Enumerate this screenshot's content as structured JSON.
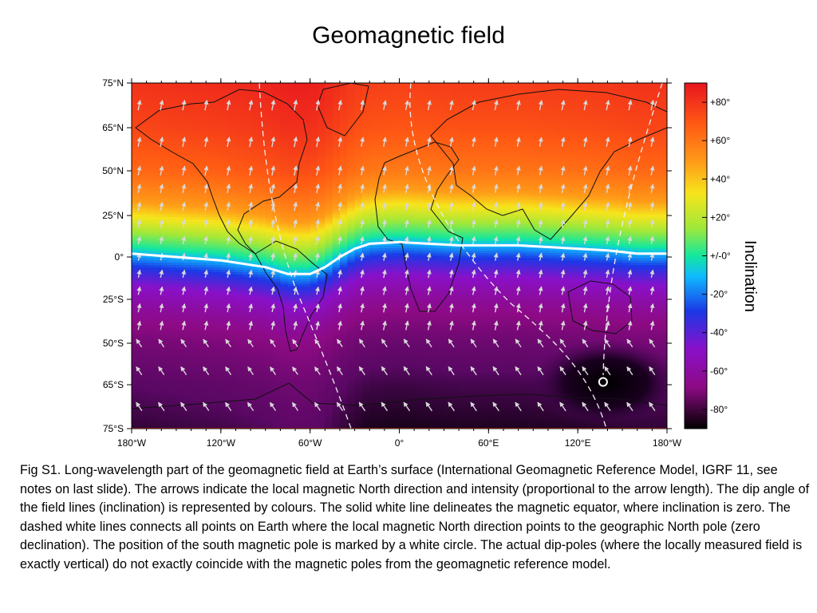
{
  "title": "Geomagnetic field",
  "chart_data": {
    "type": "heatmap",
    "variable": "Inclination",
    "x_ticks": [
      "180°W",
      "120°W",
      "60°W",
      "0°",
      "60°E",
      "120°E",
      "180°W"
    ],
    "x_tick_values": [
      -180,
      -120,
      -60,
      0,
      60,
      120,
      180
    ],
    "y_ticks": [
      "75°N",
      "65°N",
      "50°N",
      "25°N",
      "0°",
      "25°S",
      "50°S",
      "65°S",
      "75°S"
    ],
    "y_tick_values": [
      75,
      65,
      50,
      25,
      0,
      -25,
      -50,
      -65,
      -75
    ],
    "xlim": [
      -180,
      180
    ],
    "ylim": [
      -75,
      75
    ],
    "colorbar": {
      "label": "Inclination",
      "ticks": [
        "+80°",
        "+60°",
        "+40°",
        "+20°",
        "+/-0°",
        "-20°",
        "-40°",
        "-60°",
        "-80°"
      ],
      "tick_values": [
        80,
        60,
        40,
        20,
        0,
        -20,
        -40,
        -60,
        -80
      ],
      "range": [
        -90,
        90
      ]
    },
    "magnetic_equator": {
      "lon": [
        -180,
        -150,
        -120,
        -90,
        -75,
        -60,
        -50,
        -40,
        -30,
        -20,
        0,
        20,
        40,
        60,
        80,
        100,
        120,
        140,
        160,
        180
      ],
      "lat": [
        2,
        0,
        -2,
        -6,
        -10,
        -10,
        -6,
        0,
        5,
        8,
        9,
        8,
        7,
        7,
        7,
        6,
        5,
        4,
        2,
        2
      ]
    },
    "south_magnetic_pole": {
      "lon": 137,
      "lat": -64
    }
  },
  "caption": "Fig S1. Long-wavelength part of the geomagnetic field at Earth’s surface (International Geomagnetic Reference Model, IGRF 11, see notes on last slide). The arrows indicate the local magnetic North direction and intensity (proportional to the arrow length). The dip angle of the field lines (inclination) is represented by colours. The solid white line delineates the magnetic equator, where inclination is zero. The dashed white lines connects all points on Earth where the local magnetic North direction points to the geographic North pole (zero declination). The position of the south magnetic pole is marked by a white circle. The actual dip-poles (where the locally measured field is exactly vertical) do not exactly coincide with the magnetic poles from the geomagnetic reference model."
}
